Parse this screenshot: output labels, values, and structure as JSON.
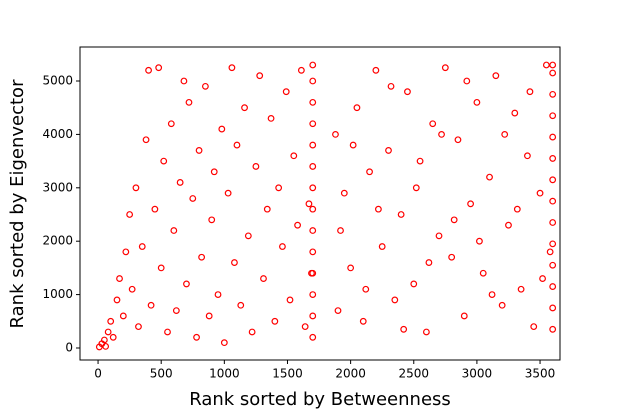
{
  "chart_data": {
    "type": "scatter",
    "xlabel": "Rank sorted by Betweenness",
    "ylabel": "Rank sorted by Eigenvector",
    "color": "#ff0000",
    "xlim": [
      -143,
      3658
    ],
    "ylim": [
      -225,
      5637
    ],
    "xticks": [
      0,
      500,
      1000,
      1500,
      2000,
      2500,
      3000,
      3500
    ],
    "yticks": [
      0,
      1000,
      2000,
      3000,
      4000,
      5000
    ],
    "x": [
      10,
      30,
      50,
      60,
      80,
      100,
      120,
      150,
      170,
      200,
      220,
      250,
      270,
      300,
      320,
      350,
      380,
      400,
      420,
      450,
      480,
      500,
      520,
      550,
      580,
      600,
      620,
      650,
      680,
      700,
      720,
      750,
      780,
      800,
      820,
      850,
      880,
      900,
      920,
      950,
      980,
      1000,
      1030,
      1060,
      1080,
      1100,
      1130,
      1160,
      1190,
      1220,
      1250,
      1280,
      1310,
      1340,
      1370,
      1400,
      1430,
      1460,
      1490,
      1520,
      1550,
      1580,
      1610,
      1640,
      1670,
      1690,
      1700,
      1700,
      1700,
      1700,
      1700,
      1700,
      1700,
      1700,
      1700,
      1700,
      1700,
      1700,
      1700,
      1700,
      1880,
      1900,
      1950,
      2000,
      2050,
      2100,
      2150,
      2200,
      2250,
      2300,
      2350,
      2400,
      2450,
      2500,
      2550,
      2600,
      2650,
      2700,
      2750,
      2800,
      2850,
      2900,
      2950,
      3000,
      3050,
      3100,
      3150,
      3200,
      3250,
      3300,
      3350,
      3400,
      3450,
      3500,
      3550,
      3580,
      1920,
      2020,
      2120,
      2220,
      2320,
      2420,
      2520,
      2620,
      2720,
      2820,
      2920,
      3020,
      3120,
      3220,
      3320,
      3420,
      3520,
      3600,
      3600,
      3600,
      3600,
      3600,
      3600,
      3600,
      3600,
      3600,
      3600,
      3600,
      3600,
      3600,
      3600
    ],
    "values": [
      20,
      80,
      150,
      30,
      300,
      500,
      200,
      900,
      1300,
      600,
      1800,
      2500,
      1100,
      3000,
      400,
      1900,
      3900,
      5200,
      800,
      2600,
      5250,
      1500,
      3500,
      300,
      4200,
      2200,
      700,
      3100,
      5000,
      1200,
      4600,
      2800,
      200,
      3700,
      1700,
      4900,
      600,
      2400,
      3300,
      1000,
      4100,
      100,
      2900,
      5250,
      1600,
      3800,
      800,
      4500,
      2100,
      300,
      3400,
      5100,
      1300,
      2600,
      4300,
      500,
      3000,
      1900,
      4800,
      900,
      3600,
      2300,
      5200,
      400,
      2700,
      1400,
      200,
      600,
      1000,
      1400,
      1800,
      2200,
      2600,
      3000,
      3400,
      3800,
      4200,
      4600,
      5000,
      5300,
      4000,
      700,
      2900,
      1500,
      4500,
      500,
      3300,
      5200,
      1900,
      3700,
      900,
      2500,
      4800,
      1200,
      3500,
      300,
      4200,
      2100,
      5250,
      1700,
      3900,
      600,
      2700,
      4600,
      1400,
      3200,
      5100,
      800,
      2300,
      4400,
      1100,
      3600,
      400,
      2900,
      5300,
      1800,
      2200,
      3800,
      1100,
      2600,
      4900,
      350,
      3000,
      1600,
      4000,
      2400,
      5000,
      2000,
      1000,
      4000,
      2600,
      4800,
      1300,
      350,
      750,
      1150,
      1550,
      1950,
      2350,
      2750,
      3150,
      3550,
      3950,
      4350,
      4750,
      5150,
      5300
    ]
  }
}
